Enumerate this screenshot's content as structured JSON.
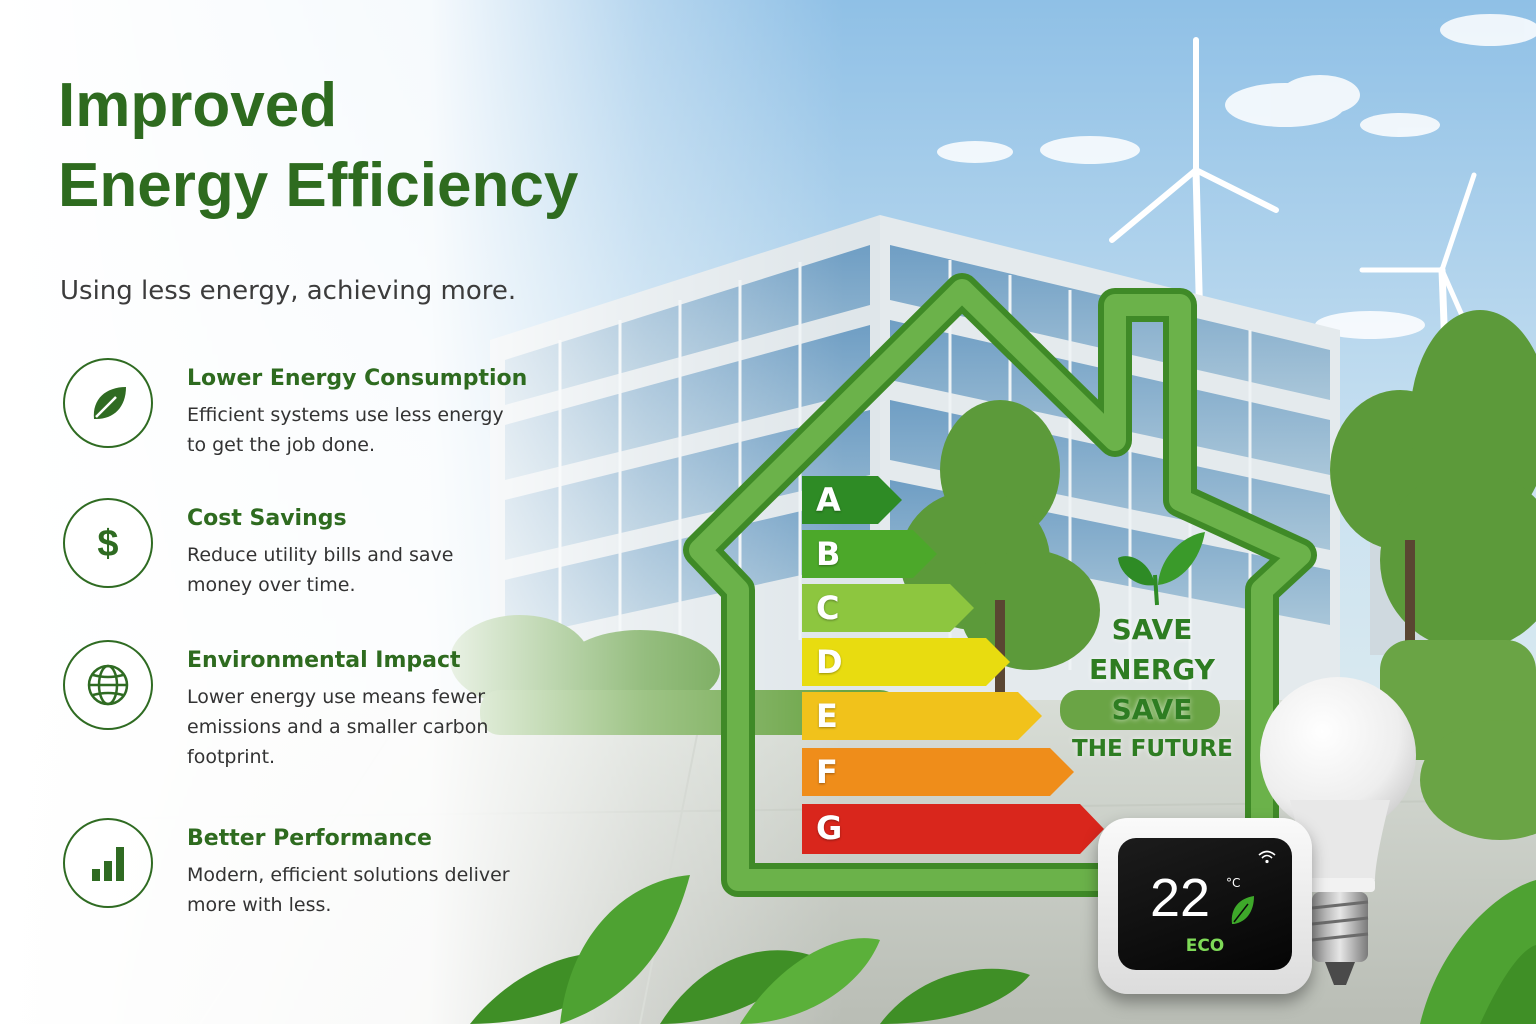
{
  "header": {
    "title_line1": "Improved",
    "title_line2": "Energy Efficiency",
    "subtitle": "Using less energy, achieving more."
  },
  "features": [
    {
      "icon": "leaf-icon",
      "title": "Lower Energy Consumption",
      "description": "Efficient systems use less energy to get the job done."
    },
    {
      "icon": "dollar-icon",
      "title": "Cost Savings",
      "description": "Reduce utility bills and save money over time."
    },
    {
      "icon": "globe-icon",
      "title": "Environmental Impact",
      "description": "Lower energy use means fewer emissions and a smaller carbon footprint."
    },
    {
      "icon": "bar-chart-icon",
      "title": "Better Performance",
      "description": "Modern, efficient solutions deliver more with less."
    }
  ],
  "energy_rating": [
    {
      "letter": "A",
      "color": "#2e8b25"
    },
    {
      "letter": "B",
      "color": "#4ca82a"
    },
    {
      "letter": "C",
      "color": "#8dc63f"
    },
    {
      "letter": "D",
      "color": "#e8dc10"
    },
    {
      "letter": "E",
      "color": "#f1c21b"
    },
    {
      "letter": "F",
      "color": "#ef8d1a"
    },
    {
      "letter": "G",
      "color": "#d9261c"
    }
  ],
  "slogan": {
    "line1": "SAVE",
    "line2": "ENERGY",
    "line3": "SAVE",
    "line4": "THE FUTURE"
  },
  "thermostat": {
    "temperature": "22",
    "unit": "°C",
    "mode": "ECO"
  },
  "colors": {
    "brand_green": "#2e6b1f",
    "house_frame": "#4f9a32"
  }
}
